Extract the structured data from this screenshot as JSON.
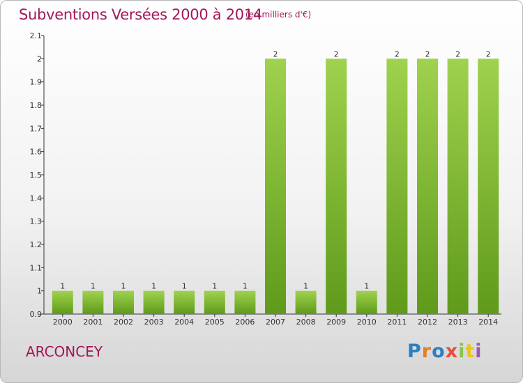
{
  "header": {
    "title": "Subventions Versées 2000 à 2014",
    "unit_note": "(en milliers d'€)"
  },
  "footer": {
    "commune": "ARCONCEY",
    "logo_text": "Proxiti",
    "logo_colors": [
      "#2d7fc1",
      "#e67e22",
      "#2d7fc1",
      "#e74c3c",
      "#8bc34a",
      "#f1c40f",
      "#9b59b6"
    ]
  },
  "colors": {
    "title": "#a3165a",
    "bar_light": "#9fd24e",
    "bar_dark": "#5f9a1a",
    "axis": "#333333"
  },
  "chart_data": {
    "type": "bar",
    "title": "Subventions Versées 2000 à 2014",
    "subtitle": "(en milliers d'€)",
    "xlabel": "",
    "ylabel": "",
    "categories": [
      "2000",
      "2001",
      "2002",
      "2003",
      "2004",
      "2005",
      "2006",
      "2007",
      "2008",
      "2009",
      "2010",
      "2011",
      "2012",
      "2013",
      "2014"
    ],
    "values": [
      1,
      1,
      1,
      1,
      1,
      1,
      1,
      2,
      1,
      2,
      1,
      2,
      2,
      2,
      2
    ],
    "data_labels": [
      "1",
      "1",
      "1",
      "1",
      "1",
      "1",
      "1",
      "2",
      "1",
      "2",
      "1",
      "2",
      "2",
      "2",
      "2"
    ],
    "ylim": [
      0.9,
      2.1
    ],
    "yticks": [
      "0.9",
      "1",
      "1.1",
      "1.2",
      "1.3",
      "1.4",
      "1.5",
      "1.6",
      "1.7",
      "1.8",
      "1.9",
      "2",
      "2.1"
    ],
    "grid": false,
    "legend": "none"
  }
}
